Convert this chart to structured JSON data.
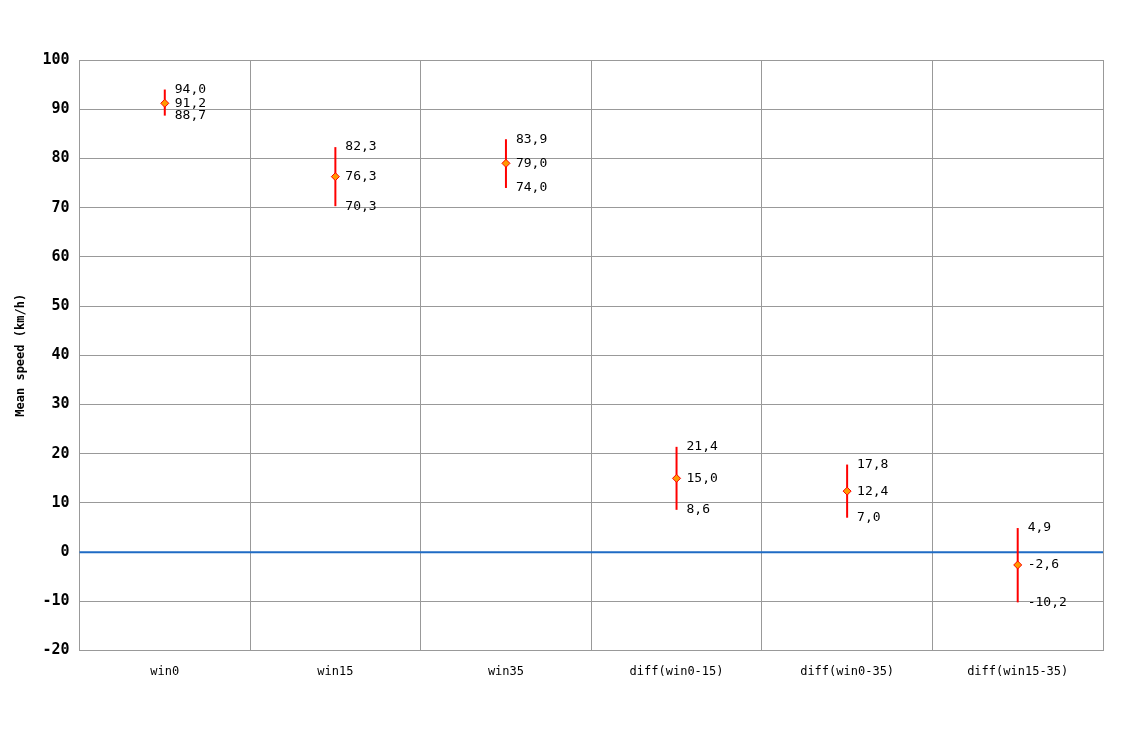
{
  "chart_data": {
    "type": "scatter",
    "ylabel": "Mean speed (km/h)",
    "categories": [
      "win0",
      "win15",
      "win35",
      "diff(win0-15)",
      "diff(win0-35)",
      "diff(win15-35)"
    ],
    "series": [
      {
        "color": "#ff9900",
        "values": [
          91.2,
          76.3,
          79.0,
          15.0,
          12.4,
          -2.6
        ],
        "errors": [
          [
            88.7,
            94.0
          ],
          [
            70.3,
            82.3
          ],
          [
            74.0,
            83.9
          ],
          [
            8.6,
            21.4
          ],
          [
            7.0,
            17.8
          ],
          [
            -10.2,
            4.9
          ]
        ],
        "value_labels": [
          "91,2",
          "76,3",
          "79,0",
          "15,0",
          "12,4",
          "-2,6"
        ]
      }
    ],
    "ylim": [
      -20,
      100
    ],
    "yticks": [
      -20,
      -10,
      0,
      10,
      20,
      30,
      40,
      50,
      60,
      70,
      80,
      90,
      100
    ],
    "grid": true,
    "legend": false,
    "marker": "diamond",
    "ref_lines": [
      {
        "axis": "y",
        "value": 0,
        "color": "#1f6bc4"
      }
    ],
    "annotations": [
      {
        "text": "94,0",
        "x": "win0",
        "y": 94.0
      },
      {
        "text": "88,7",
        "x": "win0",
        "y": 88.7
      },
      {
        "text": "82,3",
        "x": "win15",
        "y": 82.3
      },
      {
        "text": "70,3",
        "x": "win15",
        "y": 70.3
      },
      {
        "text": "83,9",
        "x": "win35",
        "y": 83.9
      },
      {
        "text": "74,0",
        "x": "win35",
        "y": 74.0
      },
      {
        "text": "21,4",
        "x": "diff(win0-15)",
        "y": 21.4
      },
      {
        "text": "8,6",
        "x": "diff(win0-15)",
        "y": 8.6
      },
      {
        "text": "17,8",
        "x": "diff(win0-35)",
        "y": 17.8
      },
      {
        "text": "7,0",
        "x": "diff(win0-35)",
        "y": 7.0
      },
      {
        "text": "4,9",
        "x": "diff(win15-35)",
        "y": 4.9
      },
      {
        "text": "-10,2",
        "x": "diff(win15-35)",
        "y": -10.2
      }
    ]
  }
}
